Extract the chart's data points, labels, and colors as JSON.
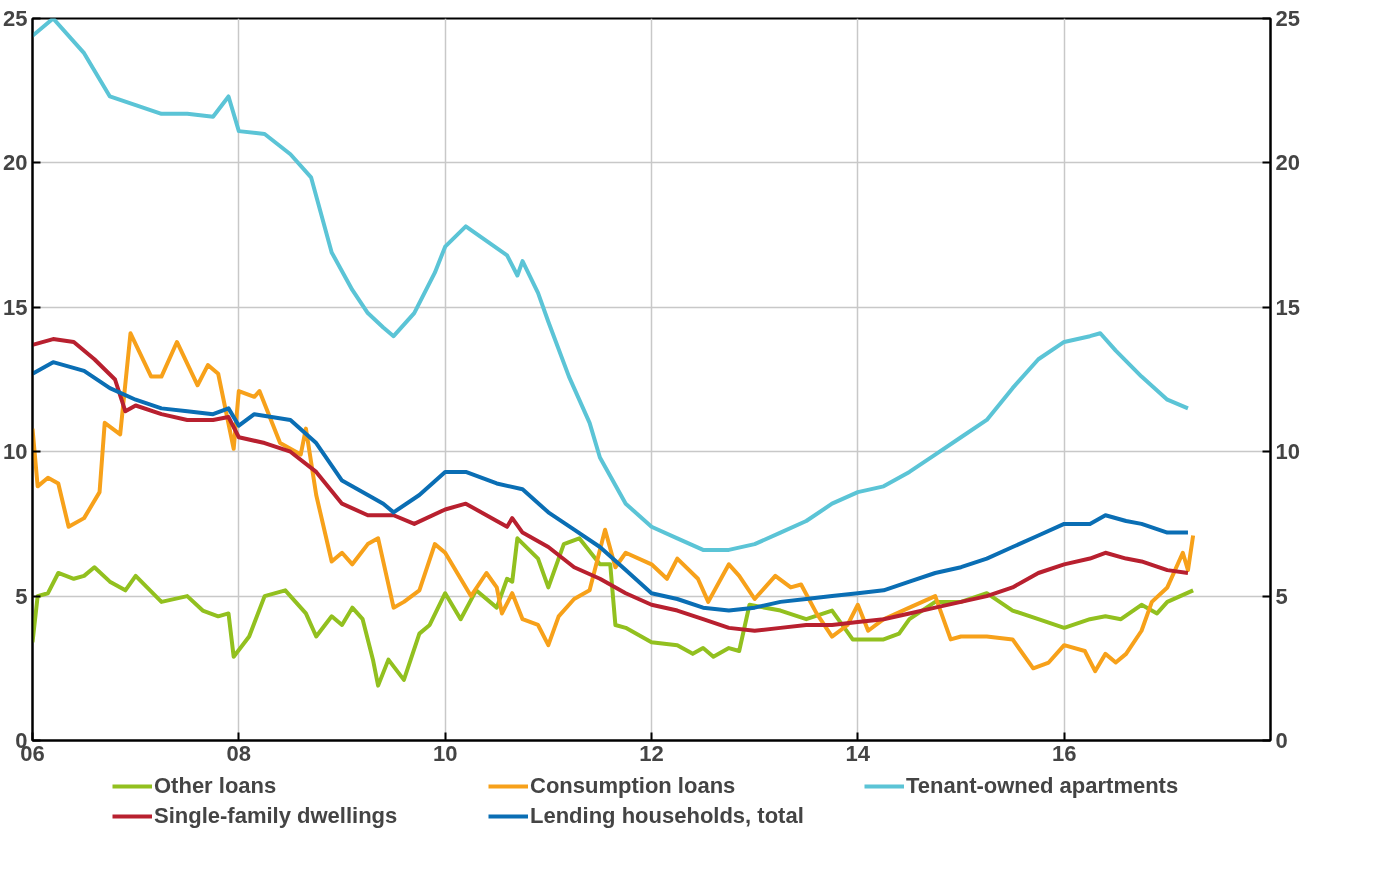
{
  "chart_data": {
    "type": "line",
    "xlim": [
      2006,
      2018
    ],
    "ylim": [
      0,
      25
    ],
    "y2lim": [
      0,
      25
    ],
    "xticks": [
      {
        "value": 2006,
        "label": "06"
      },
      {
        "value": 2008,
        "label": "08"
      },
      {
        "value": 2010,
        "label": "10"
      },
      {
        "value": 2012,
        "label": "12"
      },
      {
        "value": 2014,
        "label": "14"
      },
      {
        "value": 2016,
        "label": "16"
      }
    ],
    "yticks": [
      0,
      5,
      10,
      15,
      20,
      25
    ],
    "y2ticks": [
      0,
      5,
      10,
      15,
      20,
      25
    ],
    "grid": true,
    "legend": "bottom",
    "marker": "none",
    "line_style": "solid",
    "series": [
      {
        "name": "Other loans",
        "color": "#92c01f",
        "x": [
          2006,
          2006.05,
          2006.15,
          2006.25,
          2006.4,
          2006.5,
          2006.6,
          2006.75,
          2006.9,
          2007,
          2007.25,
          2007.5,
          2007.65,
          2007.8,
          2007.9,
          2007.95,
          2008.1,
          2008.25,
          2008.45,
          2008.65,
          2008.75,
          2008.9,
          2009,
          2009.1,
          2009.2,
          2009.3,
          2009.35,
          2009.45,
          2009.6,
          2009.75,
          2009.85,
          2010,
          2010.15,
          2010.3,
          2010.5,
          2010.6,
          2010.65,
          2010.7,
          2010.9,
          2011,
          2011.15,
          2011.3,
          2011.5,
          2011.6,
          2011.65,
          2011.75,
          2012,
          2012.25,
          2012.4,
          2012.5,
          2012.6,
          2012.75,
          2012.85,
          2012.95,
          2013.25,
          2013.5,
          2013.75,
          2013.95,
          2014.25,
          2014.4,
          2014.5,
          2014.75,
          2015,
          2015.25,
          2015.5,
          2015.75,
          2016,
          2016.25,
          2016.4,
          2016.55,
          2016.75,
          2016.9,
          2017,
          2017.25
        ],
        "values": [
          3.4,
          5.0,
          5.1,
          5.8,
          5.6,
          5.7,
          6.0,
          5.5,
          5.2,
          5.7,
          4.8,
          5.0,
          4.5,
          4.3,
          4.4,
          2.9,
          3.6,
          5.0,
          5.2,
          4.4,
          3.6,
          4.3,
          4.0,
          4.6,
          4.2,
          2.8,
          1.9,
          2.8,
          2.1,
          3.7,
          4.0,
          5.1,
          4.2,
          5.2,
          4.6,
          5.6,
          5.5,
          7.0,
          6.3,
          5.3,
          6.8,
          7.0,
          6.1,
          6.1,
          4.0,
          3.9,
          3.4,
          3.3,
          3.0,
          3.2,
          2.9,
          3.2,
          3.1,
          4.7,
          4.5,
          4.2,
          4.5,
          3.5,
          3.5,
          3.7,
          4.2,
          4.8,
          4.8,
          5.1,
          4.5,
          4.2,
          3.9,
          4.2,
          4.3,
          4.2,
          4.7,
          4.4,
          4.8,
          5.2
        ]
      },
      {
        "name": "Consumption loans",
        "color": "#f7a11a",
        "x": [
          2006,
          2006.05,
          2006.15,
          2006.25,
          2006.35,
          2006.5,
          2006.65,
          2006.7,
          2006.85,
          2006.95,
          2007.15,
          2007.25,
          2007.4,
          2007.6,
          2007.7,
          2007.8,
          2007.95,
          2008,
          2008.15,
          2008.2,
          2008.4,
          2008.6,
          2008.65,
          2008.75,
          2008.9,
          2009,
          2009.1,
          2009.25,
          2009.35,
          2009.5,
          2009.6,
          2009.75,
          2009.9,
          2010,
          2010.25,
          2010.4,
          2010.5,
          2010.55,
          2010.65,
          2010.75,
          2010.9,
          2011,
          2011.1,
          2011.25,
          2011.4,
          2011.55,
          2011.65,
          2011.75,
          2012,
          2012.15,
          2012.25,
          2012.45,
          2012.55,
          2012.75,
          2012.85,
          2013,
          2013.2,
          2013.35,
          2013.45,
          2013.6,
          2013.75,
          2013.9,
          2014,
          2014.1,
          2014.25,
          2014.5,
          2014.75,
          2014.9,
          2015,
          2015.25,
          2015.5,
          2015.7,
          2015.85,
          2016,
          2016.2,
          2016.3,
          2016.4,
          2016.5,
          2016.6,
          2016.75,
          2016.85,
          2017,
          2017.15,
          2017.2,
          2017.25
        ],
        "values": [
          10.8,
          8.8,
          9.1,
          8.9,
          7.4,
          7.7,
          8.6,
          11.0,
          10.6,
          14.1,
          12.6,
          12.6,
          13.8,
          12.3,
          13.0,
          12.7,
          10.1,
          12.1,
          11.9,
          12.1,
          10.3,
          9.9,
          10.8,
          8.5,
          6.2,
          6.5,
          6.1,
          6.8,
          7.0,
          4.6,
          4.8,
          5.2,
          6.8,
          6.5,
          5.0,
          5.8,
          5.3,
          4.4,
          5.1,
          4.2,
          4.0,
          3.3,
          4.3,
          4.9,
          5.2,
          7.3,
          6.0,
          6.5,
          6.1,
          5.6,
          6.3,
          5.6,
          4.8,
          6.1,
          5.7,
          4.9,
          5.7,
          5.3,
          5.4,
          4.4,
          3.6,
          4.0,
          4.7,
          3.8,
          4.2,
          4.6,
          5.0,
          3.5,
          3.6,
          3.6,
          3.5,
          2.5,
          2.7,
          3.3,
          3.1,
          2.4,
          3.0,
          2.7,
          3.0,
          3.8,
          4.8,
          5.3,
          6.5,
          5.9,
          7.1
        ]
      },
      {
        "name": "Tenant-owned apartments",
        "color": "#5bc4d6",
        "x": [
          2006,
          2006.2,
          2006.5,
          2006.75,
          2007,
          2007.25,
          2007.5,
          2007.75,
          2007.9,
          2008,
          2008.25,
          2008.5,
          2008.7,
          2008.9,
          2009.1,
          2009.25,
          2009.4,
          2009.5,
          2009.7,
          2009.9,
          2010,
          2010.2,
          2010.4,
          2010.6,
          2010.7,
          2010.75,
          2010.9,
          2011,
          2011.2,
          2011.4,
          2011.5,
          2011.75,
          2012,
          2012.25,
          2012.5,
          2012.75,
          2013,
          2013.25,
          2013.5,
          2013.75,
          2014,
          2014.25,
          2014.5,
          2014.75,
          2015,
          2015.25,
          2015.5,
          2015.75,
          2016,
          2016.25,
          2016.35,
          2016.5,
          2016.75,
          2017,
          2017.2
        ],
        "values": [
          24.4,
          25.0,
          23.8,
          22.3,
          22.0,
          21.7,
          21.7,
          21.6,
          22.3,
          21.1,
          21.0,
          20.3,
          19.5,
          16.9,
          15.6,
          14.8,
          14.3,
          14.0,
          14.8,
          16.2,
          17.1,
          17.8,
          17.3,
          16.8,
          16.1,
          16.6,
          15.5,
          14.5,
          12.6,
          11.0,
          9.8,
          8.2,
          7.4,
          7.0,
          6.6,
          6.6,
          6.8,
          7.2,
          7.6,
          8.2,
          8.6,
          8.8,
          9.3,
          9.9,
          10.5,
          11.1,
          12.2,
          13.2,
          13.8,
          14.0,
          14.1,
          13.5,
          12.6,
          11.8,
          11.5
        ]
      },
      {
        "name": "Single-family dwellings",
        "color": "#b8202f",
        "x": [
          2006,
          2006.2,
          2006.4,
          2006.6,
          2006.8,
          2006.9,
          2007,
          2007.25,
          2007.5,
          2007.75,
          2007.9,
          2008,
          2008.25,
          2008.5,
          2008.75,
          2009,
          2009.25,
          2009.5,
          2009.7,
          2010,
          2010.2,
          2010.5,
          2010.6,
          2010.65,
          2010.75,
          2011,
          2011.25,
          2011.5,
          2011.75,
          2012,
          2012.25,
          2012.5,
          2012.75,
          2013,
          2013.25,
          2013.5,
          2013.75,
          2014,
          2014.25,
          2014.5,
          2014.75,
          2015,
          2015.25,
          2015.5,
          2015.75,
          2016,
          2016.25,
          2016.4,
          2016.6,
          2016.75,
          2017,
          2017.2
        ],
        "values": [
          13.7,
          13.9,
          13.8,
          13.2,
          12.5,
          11.4,
          11.6,
          11.3,
          11.1,
          11.1,
          11.2,
          10.5,
          10.3,
          10.0,
          9.3,
          8.2,
          7.8,
          7.8,
          7.5,
          8.0,
          8.2,
          7.6,
          7.4,
          7.7,
          7.2,
          6.7,
          6.0,
          5.6,
          5.1,
          4.7,
          4.5,
          4.2,
          3.9,
          3.8,
          3.9,
          4.0,
          4.0,
          4.1,
          4.2,
          4.4,
          4.6,
          4.8,
          5.0,
          5.3,
          5.8,
          6.1,
          6.3,
          6.5,
          6.3,
          6.2,
          5.9,
          5.8
        ]
      },
      {
        "name": "Lending households, total",
        "color": "#0a6eb4",
        "x": [
          2006,
          2006.2,
          2006.5,
          2006.75,
          2007,
          2007.25,
          2007.5,
          2007.75,
          2007.9,
          2008,
          2008.15,
          2008.5,
          2008.75,
          2009,
          2009.25,
          2009.4,
          2009.5,
          2009.75,
          2010,
          2010.2,
          2010.5,
          2010.75,
          2011,
          2011.25,
          2011.5,
          2011.75,
          2012,
          2012.25,
          2012.5,
          2012.75,
          2013,
          2013.25,
          2013.5,
          2013.75,
          2014,
          2014.25,
          2014.5,
          2014.75,
          2015,
          2015.25,
          2015.5,
          2015.75,
          2016,
          2016.25,
          2016.4,
          2016.6,
          2016.75,
          2017,
          2017.2
        ],
        "values": [
          12.7,
          13.1,
          12.8,
          12.2,
          11.8,
          11.5,
          11.4,
          11.3,
          11.5,
          10.9,
          11.3,
          11.1,
          10.3,
          9.0,
          8.5,
          8.2,
          7.9,
          8.5,
          9.3,
          9.3,
          8.9,
          8.7,
          7.9,
          7.3,
          6.7,
          5.9,
          5.1,
          4.9,
          4.6,
          4.5,
          4.6,
          4.8,
          4.9,
          5.0,
          5.1,
          5.2,
          5.5,
          5.8,
          6.0,
          6.3,
          6.7,
          7.1,
          7.5,
          7.5,
          7.8,
          7.6,
          7.5,
          7.2,
          7.2
        ]
      }
    ]
  }
}
